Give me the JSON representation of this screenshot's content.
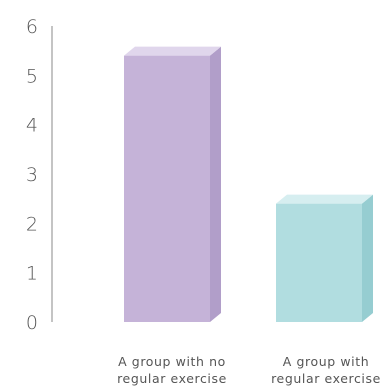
{
  "chart_data": {
    "type": "bar",
    "categories": [
      [
        "A group with no",
        "regular exercise"
      ],
      [
        "A group with",
        "regular exercise"
      ]
    ],
    "values": [
      5.4,
      2.4
    ],
    "ylim": [
      0,
      6
    ],
    "yticks": [
      "0",
      "1",
      "2",
      "3",
      "4",
      "5",
      "6"
    ],
    "grid": false,
    "colors": [
      {
        "front": "#c5b3d8",
        "side": "#b19ec9",
        "top": "#e0d6ec"
      },
      {
        "front": "#b1dde0",
        "side": "#96cdd1",
        "top": "#d6eef0"
      }
    ],
    "axis_color": "#888888"
  }
}
